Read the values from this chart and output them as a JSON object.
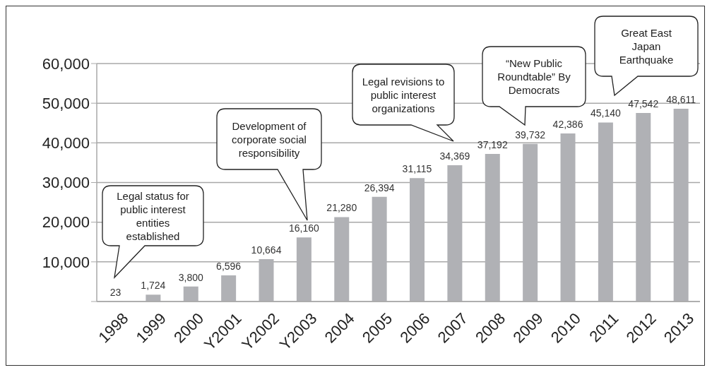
{
  "chart_data": {
    "type": "bar",
    "categories": [
      "1998",
      "1999",
      "2000",
      "Y2001",
      "Y2002",
      "Y2003",
      "2004",
      "2005",
      "2006",
      "2007",
      "2008",
      "2009",
      "2010",
      "2011",
      "2012",
      "2013"
    ],
    "values": [
      23,
      1724,
      3800,
      6596,
      10664,
      16160,
      21280,
      26394,
      31115,
      34369,
      37192,
      39732,
      42386,
      45140,
      47542,
      48611
    ],
    "value_labels": [
      "23",
      "1,724",
      "3,800",
      "6,596",
      "10,664",
      "16,160",
      "21,280",
      "26,394",
      "31,115",
      "34,369",
      "37,192",
      "39,732",
      "42,386",
      "45,140",
      "47,542",
      "48,611"
    ],
    "color": "#b0b1b5",
    "ylim": [
      0,
      60000
    ],
    "yticks": [
      {
        "value": 0,
        "label": null
      },
      {
        "value": 10000,
        "label": "10,000"
      },
      {
        "value": 20000,
        "label": "20,000"
      },
      {
        "value": 30000,
        "label": "30,000"
      },
      {
        "value": 40000,
        "label": "40,000"
      },
      {
        "value": 50000,
        "label": "50,000"
      },
      {
        "value": 60000,
        "label": "60,000"
      }
    ],
    "grid": "y",
    "annotations": [
      "Legal status for public interest entities established",
      "Development of corporate social responsibility",
      "Legal revisions to public interest organizations",
      "“New Public Roundtable” By Democrats",
      "Great East Japan Earthquake"
    ]
  }
}
